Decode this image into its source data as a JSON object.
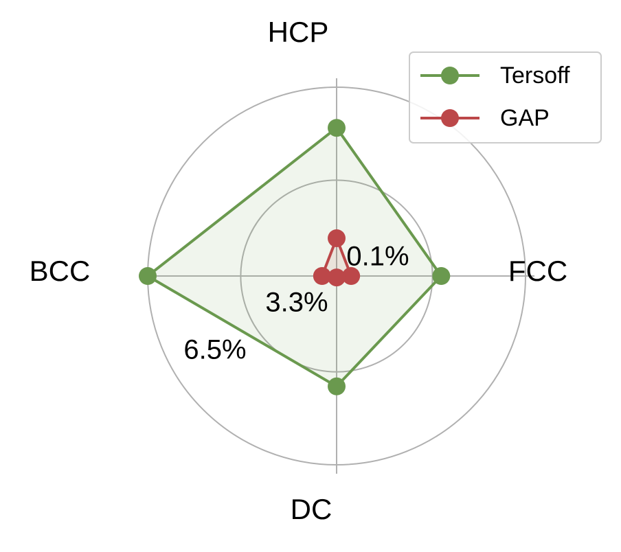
{
  "chart_data": {
    "type": "radar",
    "categories": [
      "FCC",
      "HCP",
      "BCC",
      "DC"
    ],
    "series": [
      {
        "name": "Tersoff",
        "color": "#6a994e",
        "values": [
          3.6,
          5.1,
          6.5,
          3.8
        ]
      },
      {
        "name": "GAP",
        "color": "#bc4749",
        "values": [
          0.5,
          1.3,
          0.5,
          0.05
        ]
      }
    ],
    "ylim": [
      0,
      6.5
    ],
    "yticks": [
      {
        "value": 0.1,
        "label": "0.1%"
      },
      {
        "value": 3.3,
        "label": "3.3%"
      },
      {
        "value": 6.5,
        "label": "6.5%"
      }
    ],
    "grid": true,
    "legend": "upper right"
  }
}
